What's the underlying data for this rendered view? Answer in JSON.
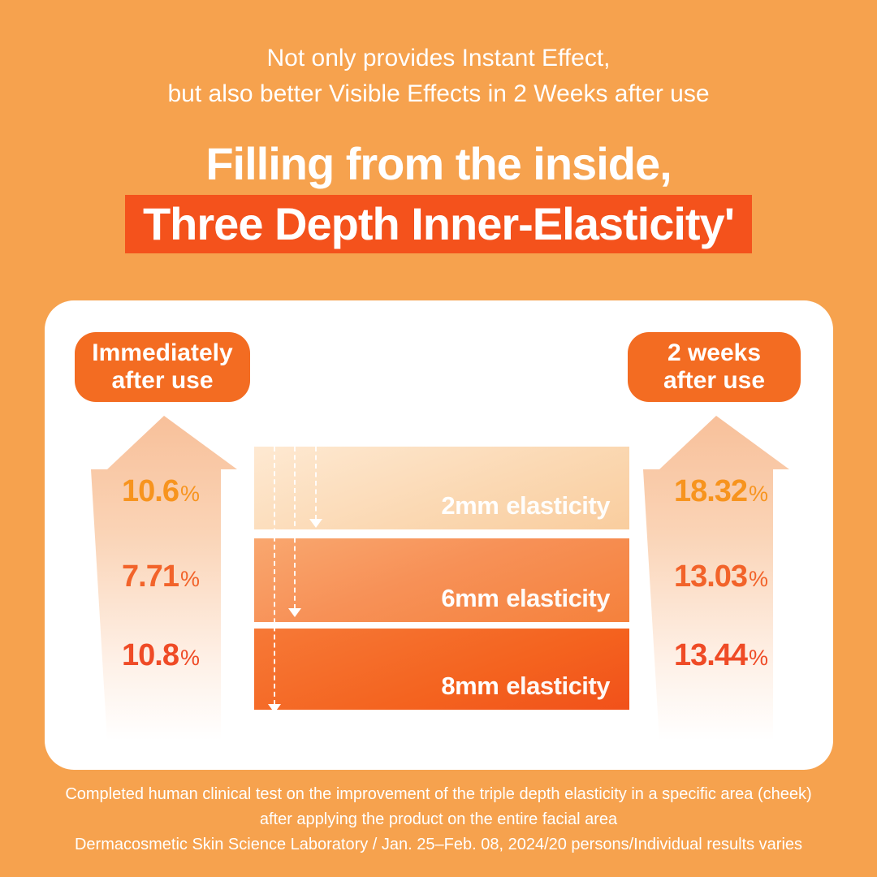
{
  "colors": {
    "background": "#F6A24E",
    "title_highlight": "#F4521C",
    "badge": "#F36C22",
    "card": "#FFFFFF",
    "percent_row_2mm": "#F7941E",
    "percent_row_6mm": "#F2632A",
    "percent_row_8mm": "#EF4B26",
    "bar_2mm_gradient": [
      "#FEE9D2",
      "#F9CD9E"
    ],
    "bar_6mm_gradient": [
      "#F9A76F",
      "#F5813C"
    ],
    "bar_8mm_gradient": [
      "#F67937",
      "#F1511A"
    ],
    "arrow_gradient_top": "#F8C09A"
  },
  "header": {
    "line1": "Not only provides Instant Effect,",
    "line2": "but also better Visible Effects in 2 Weeks after use"
  },
  "title": {
    "line1": "Filling from the inside,",
    "line2": "Three Depth Inner-Elasticity'"
  },
  "panel": {
    "left_badge": {
      "line1": "Immediately",
      "line2": "after use"
    },
    "right_badge": {
      "line1": "2 weeks",
      "line2": "after use"
    },
    "left_percents": [
      {
        "value": "10.6",
        "unit": "%"
      },
      {
        "value": "7.71",
        "unit": "%"
      },
      {
        "value": "10.8",
        "unit": "%"
      }
    ],
    "right_percents": [
      {
        "value": "18.32",
        "unit": "%"
      },
      {
        "value": "13.03",
        "unit": "%"
      },
      {
        "value": "13.44",
        "unit": "%"
      }
    ],
    "bars": [
      {
        "depth": "2mm",
        "label": "elasticity"
      },
      {
        "depth": "6mm",
        "label": "elasticity"
      },
      {
        "depth": "8mm",
        "label": "elasticity"
      }
    ]
  },
  "footer": {
    "line1": "Completed human clinical test on the improvement of the triple depth elasticity in a specific area (cheek)",
    "line2": "after applying the product on the entire facial area",
    "line3": "Dermacosmetic Skin Science Laboratory / Jan. 25–Feb. 08, 2024/20 persons/Individual results varies"
  },
  "chart_data": {
    "type": "bar",
    "title": "Filling from the inside, Three Depth Inner-Elasticity",
    "categories": [
      "2mm elasticity",
      "6mm elasticity",
      "8mm elasticity"
    ],
    "series": [
      {
        "name": "Immediately after use",
        "values": [
          10.6,
          7.71,
          10.8
        ]
      },
      {
        "name": "2 weeks after use",
        "values": [
          18.32,
          13.03,
          13.44
        ]
      }
    ],
    "unit": "%",
    "legend_position": "top",
    "grid": false
  }
}
